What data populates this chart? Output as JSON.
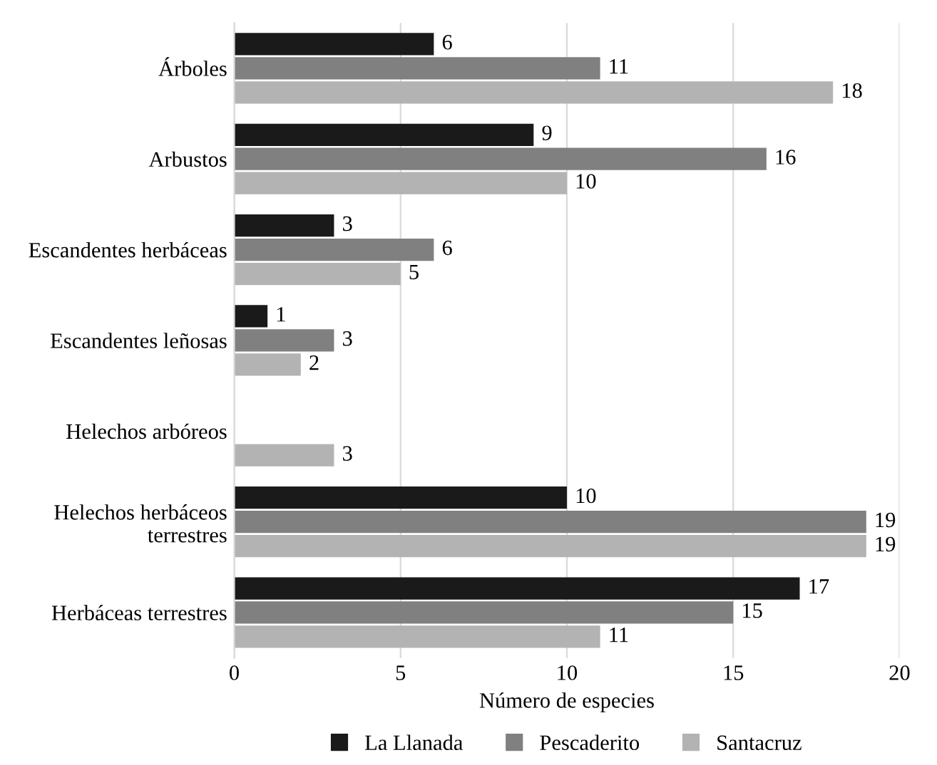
{
  "chart_data": {
    "type": "bar",
    "orientation": "horizontal",
    "xlabel": "Número de especies",
    "categories": [
      "Árboles",
      "Arbustos",
      "Escandentes herbáceas",
      "Escandentes leñosas",
      "Helechos arbóreos",
      "Helechos herbáceos\nterrestres",
      "Herbáceas terrestres"
    ],
    "series": [
      {
        "name": "La Llanada",
        "color": "#1a1a1a",
        "values": [
          6,
          9,
          3,
          1,
          null,
          10,
          17
        ]
      },
      {
        "name": "Pescaderito",
        "color": "#808080",
        "values": [
          11,
          16,
          6,
          3,
          null,
          19,
          15
        ]
      },
      {
        "name": "Santacruz",
        "color": "#b3b3b3",
        "values": [
          18,
          10,
          5,
          2,
          3,
          19,
          11
        ]
      }
    ],
    "xlim": [
      0,
      20
    ],
    "xticks": [
      0,
      5,
      10,
      15,
      20
    ],
    "grid": "x",
    "legend": "bottom",
    "data_labels": true
  }
}
